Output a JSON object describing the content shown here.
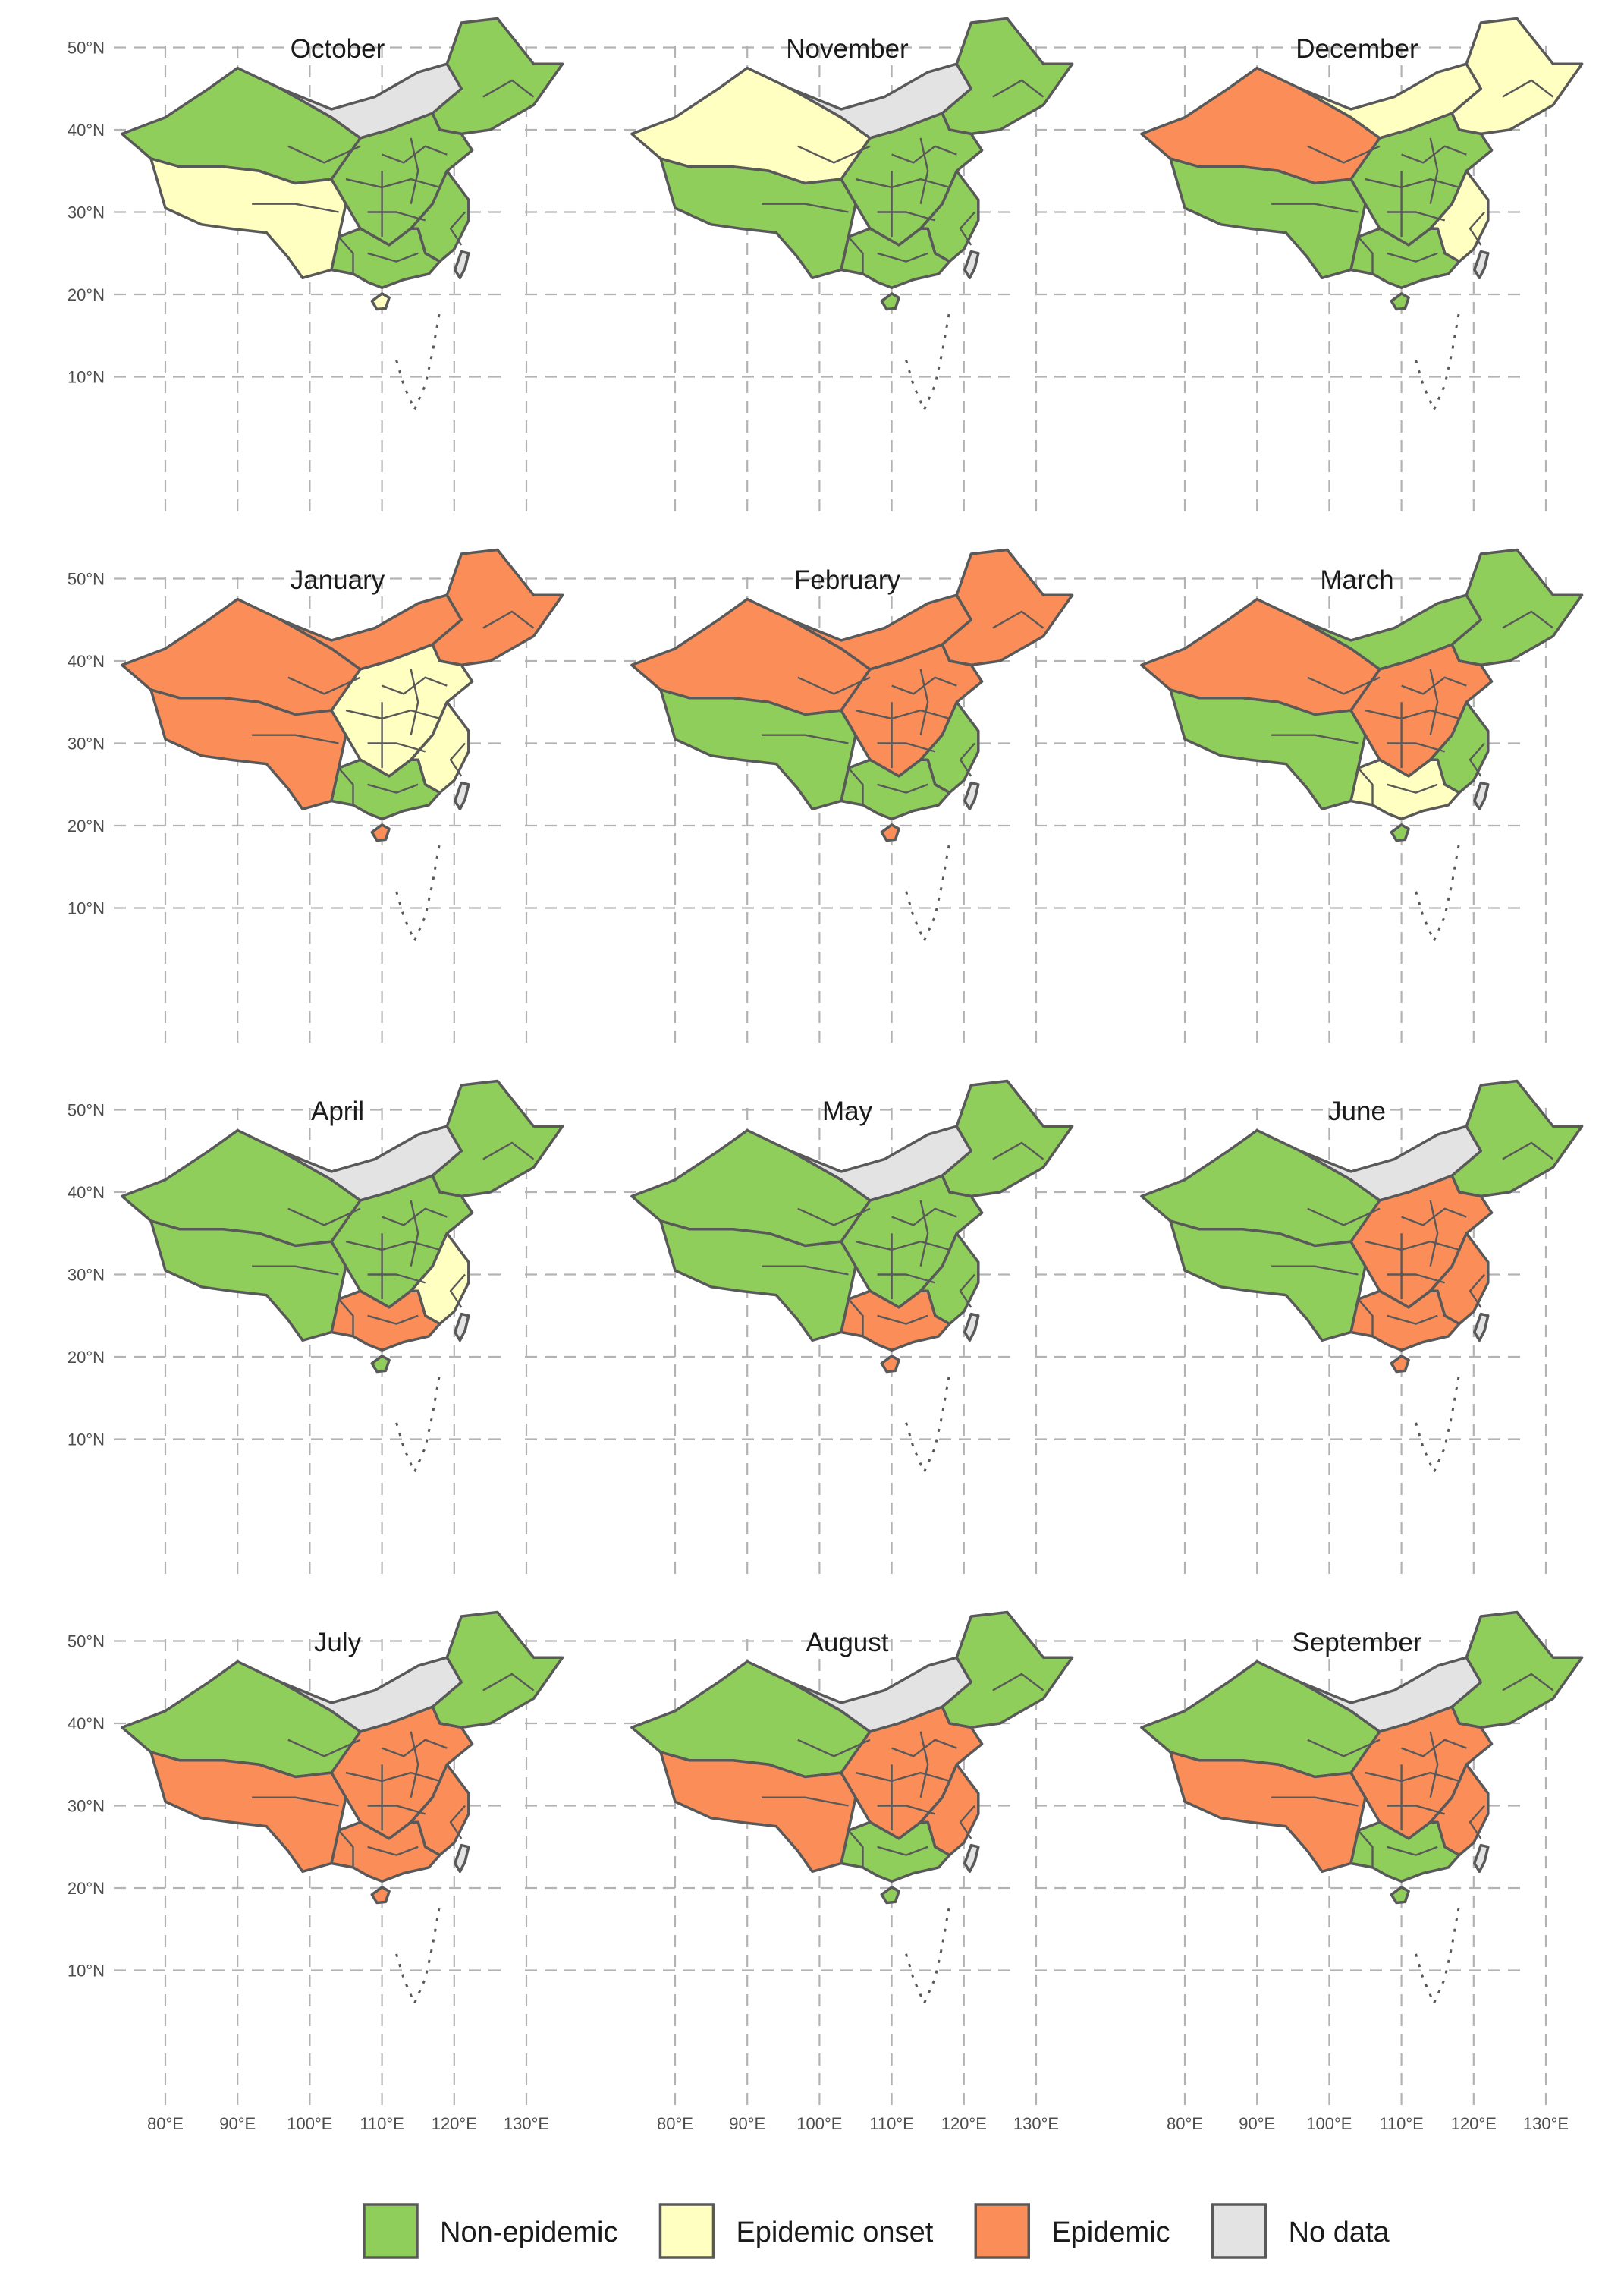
{
  "chart_data": {
    "type": "choropleth-map-panels",
    "legend": {
      "placement": "bottom",
      "items": [
        {
          "key": "non_epidemic",
          "label": "Non-epidemic",
          "color": "#8fce5b"
        },
        {
          "key": "epidemic_onset",
          "label": "Epidemic onset",
          "color": "#ffffc2"
        },
        {
          "key": "epidemic",
          "label": "Epidemic",
          "color": "#fb8d58"
        },
        {
          "key": "no_data",
          "label": "No data",
          "color": "#e3e3e3"
        }
      ]
    },
    "axes": {
      "lon_ticks": [
        "80°E",
        "90°E",
        "100°E",
        "110°E",
        "120°E",
        "130°E"
      ],
      "lat_ticks": [
        "10°N",
        "20°N",
        "30°N",
        "40°N",
        "50°N"
      ],
      "lon_values": [
        80,
        90,
        100,
        110,
        120,
        130
      ],
      "lat_values": [
        10,
        20,
        30,
        40,
        50
      ],
      "grid": true
    },
    "panels": [
      {
        "title": "October",
        "northeast": "non_epidemic",
        "northwest": "non_epidemic",
        "north": "no_data",
        "central": "non_epidemic",
        "southwest": "epidemic_onset",
        "south": "non_epidemic",
        "east": "non_epidemic",
        "hainan": "epidemic_onset"
      },
      {
        "title": "November",
        "northeast": "non_epidemic",
        "northwest": "epidemic_onset",
        "north": "no_data",
        "central": "non_epidemic",
        "southwest": "non_epidemic",
        "south": "non_epidemic",
        "east": "non_epidemic",
        "hainan": "non_epidemic"
      },
      {
        "title": "December",
        "northeast": "epidemic_onset",
        "northwest": "epidemic",
        "north": "epidemic_onset",
        "central": "non_epidemic",
        "southwest": "non_epidemic",
        "south": "non_epidemic",
        "east": "epidemic_onset",
        "hainan": "non_epidemic"
      },
      {
        "title": "January",
        "northeast": "epidemic",
        "northwest": "epidemic",
        "north": "epidemic",
        "central": "epidemic_onset",
        "southwest": "epidemic",
        "south": "non_epidemic",
        "east": "epidemic_onset",
        "hainan": "epidemic"
      },
      {
        "title": "February",
        "northeast": "epidemic",
        "northwest": "epidemic",
        "north": "epidemic",
        "central": "epidemic",
        "southwest": "non_epidemic",
        "south": "non_epidemic",
        "east": "non_epidemic",
        "hainan": "epidemic"
      },
      {
        "title": "March",
        "northeast": "non_epidemic",
        "northwest": "epidemic",
        "north": "non_epidemic",
        "central": "epidemic",
        "southwest": "non_epidemic",
        "south": "epidemic_onset",
        "east": "non_epidemic",
        "hainan": "non_epidemic"
      },
      {
        "title": "April",
        "northeast": "non_epidemic",
        "northwest": "non_epidemic",
        "north": "no_data",
        "central": "non_epidemic",
        "southwest": "non_epidemic",
        "south": "epidemic",
        "east": "epidemic_onset",
        "hainan": "non_epidemic"
      },
      {
        "title": "May",
        "northeast": "non_epidemic",
        "northwest": "non_epidemic",
        "north": "no_data",
        "central": "non_epidemic",
        "southwest": "non_epidemic",
        "south": "epidemic",
        "east": "non_epidemic",
        "hainan": "epidemic"
      },
      {
        "title": "June",
        "northeast": "non_epidemic",
        "northwest": "non_epidemic",
        "north": "no_data",
        "central": "epidemic",
        "southwest": "non_epidemic",
        "south": "epidemic",
        "east": "epidemic",
        "hainan": "epidemic"
      },
      {
        "title": "July",
        "northeast": "non_epidemic",
        "northwest": "non_epidemic",
        "north": "no_data",
        "central": "epidemic",
        "southwest": "epidemic",
        "south": "epidemic",
        "east": "epidemic",
        "hainan": "epidemic"
      },
      {
        "title": "August",
        "northeast": "non_epidemic",
        "northwest": "non_epidemic",
        "north": "no_data",
        "central": "epidemic",
        "southwest": "epidemic",
        "south": "non_epidemic",
        "east": "epidemic",
        "hainan": "non_epidemic"
      },
      {
        "title": "September",
        "northeast": "non_epidemic",
        "northwest": "non_epidemic",
        "north": "no_data",
        "central": "epidemic",
        "southwest": "epidemic",
        "south": "non_epidemic",
        "east": "epidemic",
        "hainan": "non_epidemic"
      }
    ]
  }
}
